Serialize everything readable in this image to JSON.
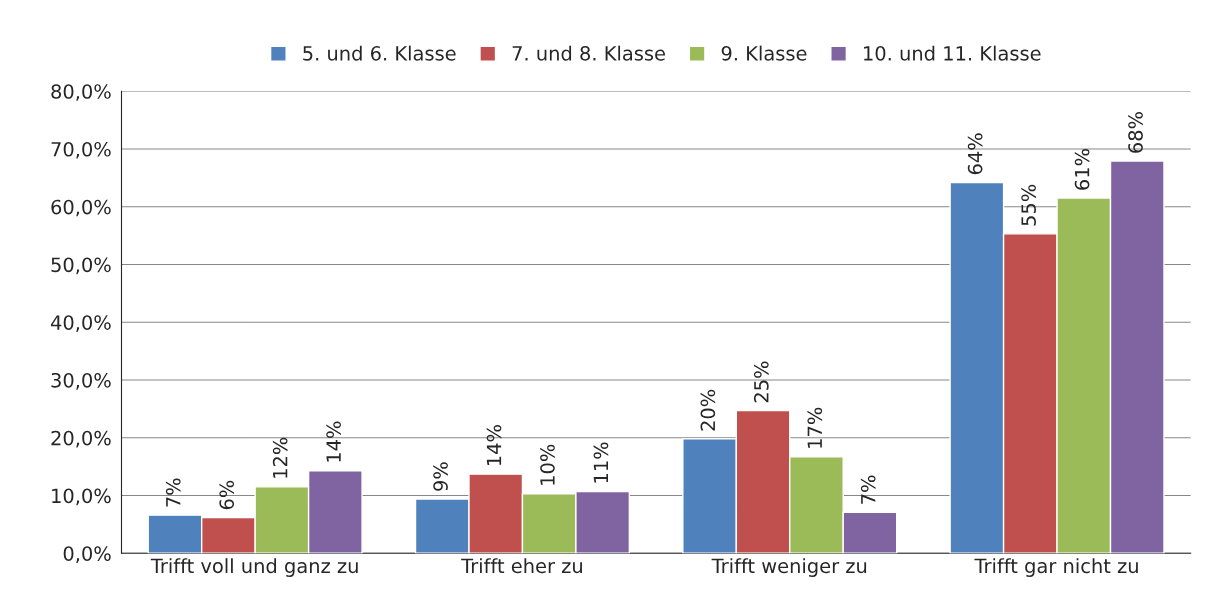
{
  "chart_data": {
    "type": "bar",
    "categories": [
      "Trifft voll und ganz zu",
      "Trifft eher zu",
      "Trifft weniger zu",
      "Trifft gar nicht zu"
    ],
    "series": [
      {
        "name": "5. und 6. Klasse",
        "color": "#4f81bd",
        "values": [
          6.6,
          9.4,
          19.8,
          64.2
        ],
        "value_labels": [
          "7%",
          "9%",
          "20%",
          "64%"
        ]
      },
      {
        "name": "7. und 8. Klasse",
        "color": "#c0504d",
        "values": [
          6.2,
          13.7,
          24.7,
          55.3
        ],
        "value_labels": [
          "6%",
          "14%",
          "25%",
          "55%"
        ]
      },
      {
        "name": "9. Klasse",
        "color": "#9bbb59",
        "values": [
          11.5,
          10.3,
          16.7,
          61.5
        ],
        "value_labels": [
          "12%",
          "10%",
          "17%",
          "61%"
        ]
      },
      {
        "name": "10. und 11. Klasse",
        "color": "#8064a2",
        "values": [
          14.3,
          10.7,
          7.1,
          67.9
        ],
        "value_labels": [
          "14%",
          "11%",
          "7%",
          "68%"
        ]
      }
    ],
    "ylim": [
      0,
      80
    ],
    "yticks": [
      {
        "value": 0,
        "label": "0,0%"
      },
      {
        "value": 10,
        "label": "10,0%"
      },
      {
        "value": 20,
        "label": "20,0%"
      },
      {
        "value": 30,
        "label": "30,0%"
      },
      {
        "value": 40,
        "label": "40,0%"
      },
      {
        "value": 50,
        "label": "50,0%"
      },
      {
        "value": 60,
        "label": "60,0%"
      },
      {
        "value": 70,
        "label": "70,0%"
      },
      {
        "value": 80,
        "label": "80,0%"
      }
    ],
    "grid": "y",
    "legend": "top"
  }
}
